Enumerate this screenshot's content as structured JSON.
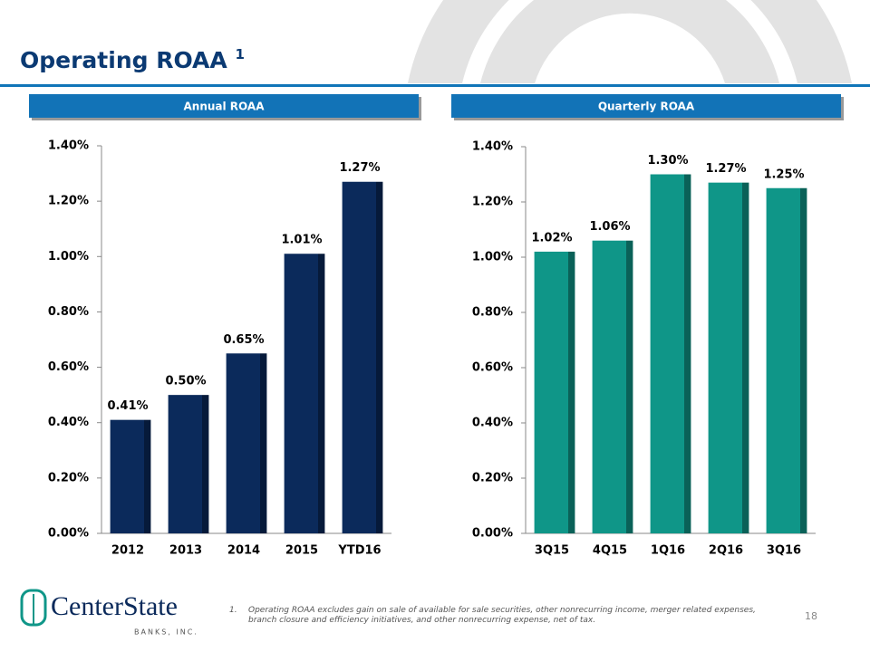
{
  "slide": {
    "title": "Operating ROAA",
    "title_note": "1",
    "page_number": "18",
    "logo": {
      "name": "CenterState",
      "tagline": "BANKS, INC."
    },
    "footnote": {
      "marker": "1.",
      "text": "Operating ROAA excludes gain on sale of available for sale securities, other nonrecurring income, merger related expenses, branch closure and efficiency initiatives, and other nonrecurring expense, net of tax."
    }
  },
  "chart_data": [
    {
      "type": "bar",
      "title": "Annual ROAA",
      "color": "#0b2a5b",
      "categories": [
        "2012",
        "2013",
        "2014",
        "2015",
        "YTD16"
      ],
      "values": [
        0.41,
        0.5,
        0.65,
        1.01,
        1.27
      ],
      "value_labels": [
        "0.41%",
        "0.50%",
        "0.65%",
        "1.01%",
        "1.27%"
      ],
      "ylim": [
        0,
        1.4
      ],
      "yticks": [
        {
          "value": 0,
          "label": "0.00%"
        },
        {
          "value": 0.2,
          "label": "0.20%"
        },
        {
          "value": 0.4,
          "label": "0.40%"
        },
        {
          "value": 0.6,
          "label": "0.60%"
        },
        {
          "value": 0.8,
          "label": "0.80%"
        },
        {
          "value": 1.0,
          "label": "1.00%"
        },
        {
          "value": 1.2,
          "label": "1.20%"
        },
        {
          "value": 1.4,
          "label": "1.40%"
        }
      ]
    },
    {
      "type": "bar",
      "title": "Quarterly ROAA",
      "color": "#0f9688",
      "categories": [
        "3Q15",
        "4Q15",
        "1Q16",
        "2Q16",
        "3Q16"
      ],
      "values": [
        1.02,
        1.06,
        1.3,
        1.27,
        1.25
      ],
      "value_labels": [
        "1.02%",
        "1.06%",
        "1.30%",
        "1.27%",
        "1.25%"
      ],
      "ylim": [
        0,
        1.4
      ],
      "yticks": [
        {
          "value": 0,
          "label": "0.00%"
        },
        {
          "value": 0.2,
          "label": "0.20%"
        },
        {
          "value": 0.4,
          "label": "0.40%"
        },
        {
          "value": 0.6,
          "label": "0.60%"
        },
        {
          "value": 0.8,
          "label": "0.80%"
        },
        {
          "value": 1.0,
          "label": "1.00%"
        },
        {
          "value": 1.2,
          "label": "1.20%"
        },
        {
          "value": 1.4,
          "label": "1.40%"
        }
      ]
    }
  ]
}
